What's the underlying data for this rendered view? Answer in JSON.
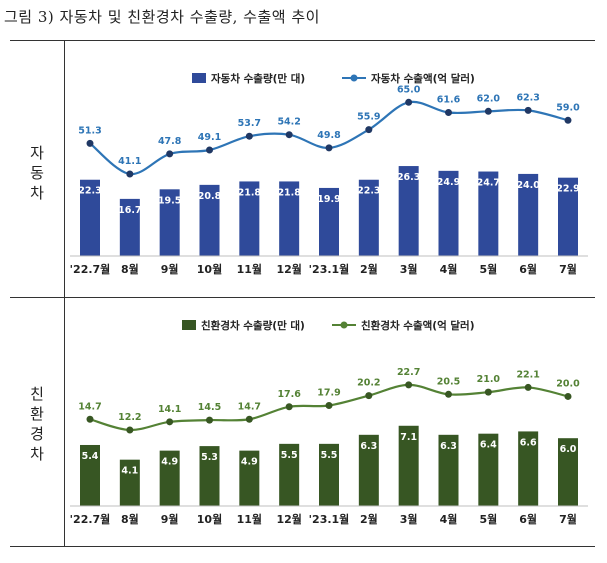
{
  "title": "그림 3) 자동차 및 친환경차 수출량, 수출액 추이",
  "chart_data": [
    {
      "type": "bar",
      "row_label": [
        "자",
        "동",
        "차"
      ],
      "categories": [
        "'22.7월",
        "8월",
        "9월",
        "10월",
        "11월",
        "12월",
        "'23.1월",
        "2월",
        "3월",
        "4월",
        "5월",
        "6월",
        "7월"
      ],
      "series": [
        {
          "name": "자동차 수출량(만 대)",
          "type": "bar",
          "color": "#2F4A9A",
          "values": [
            22.3,
            16.7,
            19.5,
            20.8,
            21.8,
            21.8,
            19.9,
            22.3,
            26.3,
            24.9,
            24.7,
            24.0,
            22.9
          ]
        },
        {
          "name": "자동차 수출액(억 달러)",
          "type": "line",
          "color": "#2E75B6",
          "values": [
            51.3,
            41.1,
            47.8,
            49.1,
            53.7,
            54.2,
            49.8,
            55.9,
            65.0,
            61.6,
            62.0,
            62.3,
            59.0
          ]
        }
      ],
      "legend_position": "top",
      "grid": false
    },
    {
      "type": "bar",
      "row_label": [
        "친",
        "환",
        "경",
        "차"
      ],
      "categories": [
        "'22.7월",
        "8월",
        "9월",
        "10월",
        "11월",
        "12월",
        "'23.1월",
        "2월",
        "3월",
        "4월",
        "5월",
        "6월",
        "7월"
      ],
      "series": [
        {
          "name": "친환경차 수출량(만 대)",
          "type": "bar",
          "color": "#375623",
          "values": [
            5.4,
            4.1,
            4.9,
            5.3,
            4.9,
            5.5,
            5.5,
            6.3,
            7.1,
            6.3,
            6.4,
            6.6,
            6.0
          ]
        },
        {
          "name": "친환경차 수출액(억 달러)",
          "type": "line",
          "color": "#548235",
          "values": [
            14.7,
            12.2,
            14.1,
            14.5,
            14.7,
            17.6,
            17.9,
            20.2,
            22.7,
            20.5,
            21.0,
            22.1,
            20.0
          ]
        }
      ],
      "legend_position": "top",
      "grid": false
    }
  ]
}
